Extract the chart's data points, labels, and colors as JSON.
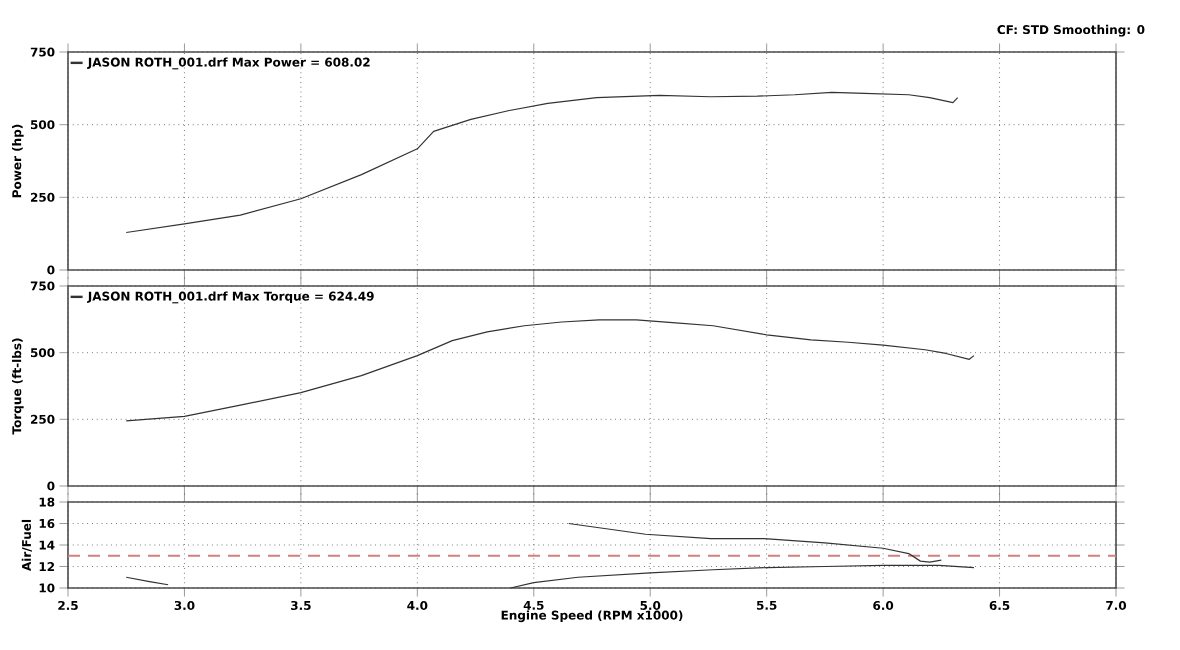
{
  "chart_data": [
    {
      "type": "line",
      "ylabel": "Power (hp)",
      "annotations": [
        "CF: STD  Smoothing: 0"
      ],
      "legend": "top left",
      "grid": true,
      "tick_labels": "y",
      "xlim": [
        2.5,
        7.0
      ],
      "xticks": [
        2.5,
        3,
        3.5,
        4,
        4.5,
        5,
        5.5,
        6,
        6.5,
        7
      ],
      "ylim": [
        0,
        750
      ],
      "yticks": [
        0,
        250,
        500,
        750
      ],
      "series": [
        {
          "name": "JASON ROTH_001.drf Max Power = 608.02",
          "color": "#333333",
          "x": [
            2.75,
            3.0,
            3.24,
            3.5,
            3.76,
            4.0,
            4.07,
            4.23,
            4.39,
            4.56,
            4.77,
            5.04,
            5.26,
            5.46,
            5.62,
            5.78,
            5.92,
            6.11,
            6.2,
            6.3,
            6.32
          ],
          "values": [
            129,
            159,
            189,
            245,
            328,
            417,
            477,
            518,
            548,
            573,
            593,
            601,
            596,
            598,
            603,
            611,
            608,
            603,
            593,
            576,
            593
          ]
        }
      ]
    },
    {
      "type": "line",
      "ylabel": "Torque (ft-lbs)",
      "legend": "top left",
      "grid": true,
      "tick_labels": "y",
      "xlim": [
        2.5,
        7.0
      ],
      "xticks": [
        2.5,
        3,
        3.5,
        4,
        4.5,
        5,
        5.5,
        6,
        6.5,
        7
      ],
      "ylim": [
        0,
        750
      ],
      "yticks": [
        0,
        250,
        500,
        750
      ],
      "series": [
        {
          "name": "JASON ROTH_001.drf Max Torque = 624.49",
          "color": "#333333",
          "x": [
            2.75,
            3.0,
            3.24,
            3.5,
            3.76,
            4.0,
            4.15,
            4.3,
            4.46,
            4.62,
            4.78,
            4.94,
            5.11,
            5.27,
            5.5,
            5.69,
            5.85,
            6.0,
            6.18,
            6.27,
            6.37,
            6.39
          ],
          "values": [
            244,
            261,
            303,
            350,
            414,
            489,
            545,
            578,
            601,
            615,
            623,
            623,
            612,
            601,
            567,
            548,
            539,
            528,
            511,
            497,
            475,
            489
          ]
        }
      ]
    },
    {
      "type": "line",
      "ylabel": "Air/Fuel",
      "xlabel": "Engine Speed (RPM x1000)",
      "grid": true,
      "xlim": [
        2.5,
        7.0
      ],
      "xticks": [
        2.5,
        {
          "value": 3,
          "label": "3.0"
        },
        3.5,
        {
          "value": 4,
          "label": "4.0"
        },
        4.5,
        {
          "value": 5,
          "label": "5.0"
        },
        5.5,
        {
          "value": 6,
          "label": "6.0"
        },
        6.5,
        {
          "value": 7,
          "label": "7.0"
        }
      ],
      "ylim": [
        10,
        18
      ],
      "yticks": [
        10,
        12,
        14,
        16,
        18
      ],
      "ref_lines": [
        {
          "axis": "y",
          "value": 13,
          "color": "#d08080",
          "line_style": "dashed"
        }
      ],
      "series": [
        {
          "color": "#333333",
          "x": [
            4.65,
            4.98,
            5.26,
            5.49,
            5.75,
            6.0,
            6.11,
            6.16,
            6.2,
            6.25
          ],
          "values": [
            16.0,
            15.0,
            14.6,
            14.6,
            14.2,
            13.7,
            13.2,
            12.5,
            12.4,
            12.6
          ]
        },
        {
          "color": "#333333",
          "x": [
            2.75,
            2.85,
            2.93,
            3.0,
            4.4,
            4.5,
            4.69,
            5.0,
            5.27,
            5.5,
            5.75,
            6.0,
            6.24,
            6.39
          ],
          "values": [
            11.0,
            10.6,
            10.3,
            null,
            10.0,
            10.5,
            11.0,
            11.4,
            11.7,
            11.9,
            12.0,
            12.1,
            12.1,
            11.9
          ]
        }
      ]
    }
  ]
}
